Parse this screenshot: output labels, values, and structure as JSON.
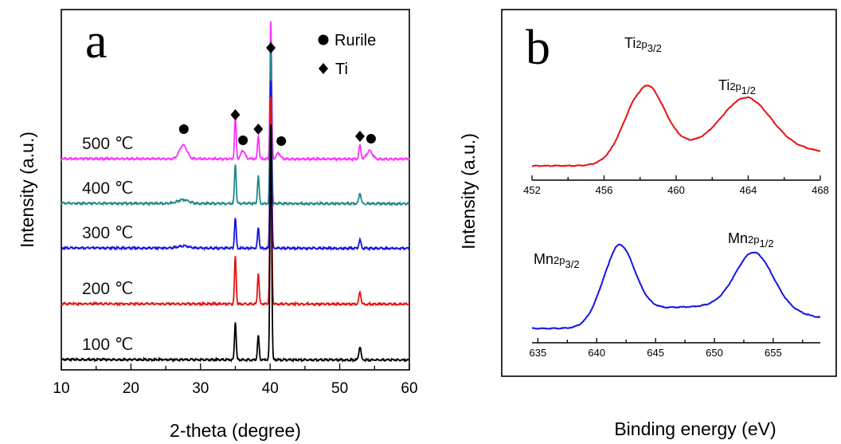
{
  "chart_data": [
    {
      "id": "a",
      "type": "line",
      "panel_label": "a",
      "xlabel": "2-theta (degree)",
      "ylabel": "Intensity (a.u.)",
      "xlim": [
        10,
        60
      ],
      "xticks": [
        10,
        20,
        30,
        40,
        50,
        60
      ],
      "legend": [
        {
          "marker": "circle",
          "label": "Rurile"
        },
        {
          "marker": "diamond",
          "label": "Ti"
        }
      ],
      "legend_position": "top-right",
      "series": [
        {
          "name": "500 ℃",
          "color": "#ff33ff",
          "baseline": 0.0,
          "peaks": [
            [
              27.5,
              0.1,
              0.55
            ],
            [
              35.0,
              0.3,
              0.12
            ],
            [
              36.1,
              0.06,
              0.3
            ],
            [
              38.3,
              0.17,
              0.12
            ],
            [
              40.1,
              1.0,
              0.12
            ],
            [
              41.2,
              0.04,
              0.3
            ],
            [
              52.9,
              0.1,
              0.15
            ],
            [
              54.3,
              0.06,
              0.4
            ]
          ]
        },
        {
          "name": "400 ℃",
          "color": "#1f8a8a",
          "baseline": 0.0,
          "peaks": [
            [
              27.5,
              0.03,
              0.8
            ],
            [
              35.0,
              0.33,
              0.12
            ],
            [
              38.3,
              0.23,
              0.12
            ],
            [
              40.1,
              1.35,
              0.12
            ],
            [
              52.9,
              0.09,
              0.15
            ]
          ]
        },
        {
          "name": "300 ℃",
          "color": "#1414e6",
          "baseline": 0.0,
          "peaks": [
            [
              27.5,
              0.02,
              0.8
            ],
            [
              35.0,
              0.29,
              0.12
            ],
            [
              38.3,
              0.19,
              0.12
            ],
            [
              40.1,
              1.6,
              0.12
            ],
            [
              52.9,
              0.08,
              0.15
            ]
          ]
        },
        {
          "name": "200 ℃",
          "color": "#e61414",
          "baseline": 0.0,
          "peaks": [
            [
              35.0,
              0.4,
              0.12
            ],
            [
              38.3,
              0.26,
              0.12
            ],
            [
              40.1,
              1.75,
              0.12
            ],
            [
              52.9,
              0.1,
              0.15
            ]
          ]
        },
        {
          "name": "100 ℃",
          "color": "#000000",
          "baseline": 0.0,
          "peaks": [
            [
              35.0,
              0.31,
              0.12
            ],
            [
              38.3,
              0.2,
              0.12
            ],
            [
              40.1,
              1.95,
              0.12
            ],
            [
              52.9,
              0.11,
              0.15
            ]
          ]
        }
      ],
      "markers": [
        {
          "symbol": "circle",
          "x": 27.6
        },
        {
          "symbol": "diamond",
          "x": 35.0
        },
        {
          "symbol": "circle",
          "x": 36.1
        },
        {
          "symbol": "diamond",
          "x": 38.3
        },
        {
          "symbol": "diamond",
          "x": 40.1
        },
        {
          "symbol": "circle",
          "x": 41.6
        },
        {
          "symbol": "diamond",
          "x": 52.9
        },
        {
          "symbol": "circle",
          "x": 54.5
        }
      ]
    },
    {
      "id": "b-ti",
      "type": "line",
      "panel_label": "b",
      "xlim": [
        452,
        468
      ],
      "xticks": [
        452,
        456,
        460,
        464,
        468
      ],
      "color": "#e61414",
      "peaks": [
        {
          "label_main": "Ti",
          "label_sub": "2p",
          "label_idx": "3/2",
          "x": 458.2
        },
        {
          "label_main": "Ti",
          "label_sub": "2p",
          "label_idx": "1/2",
          "x": 463.9
        }
      ],
      "components": [
        [
          458.2,
          1.0,
          1.05
        ],
        [
          463.9,
          0.62,
          1.35
        ]
      ]
    },
    {
      "id": "b-mn",
      "type": "line",
      "xlim": [
        634.5,
        659
      ],
      "xticks": [
        635,
        640,
        645,
        650,
        655
      ],
      "color": "#1414e6",
      "peaks": [
        {
          "label_main": "Mn",
          "label_sub": "2p",
          "label_idx": "3/2",
          "x": 641.8
        },
        {
          "label_main": "Mn",
          "label_sub": "2p",
          "label_idx": "1/2",
          "x": 653.4
        }
      ],
      "components": [
        [
          641.8,
          1.0,
          1.35
        ],
        [
          653.4,
          0.72,
          1.6
        ]
      ],
      "xlabel": "Binding energy (eV)",
      "ylabel": "Intensity (a.u.)"
    }
  ]
}
